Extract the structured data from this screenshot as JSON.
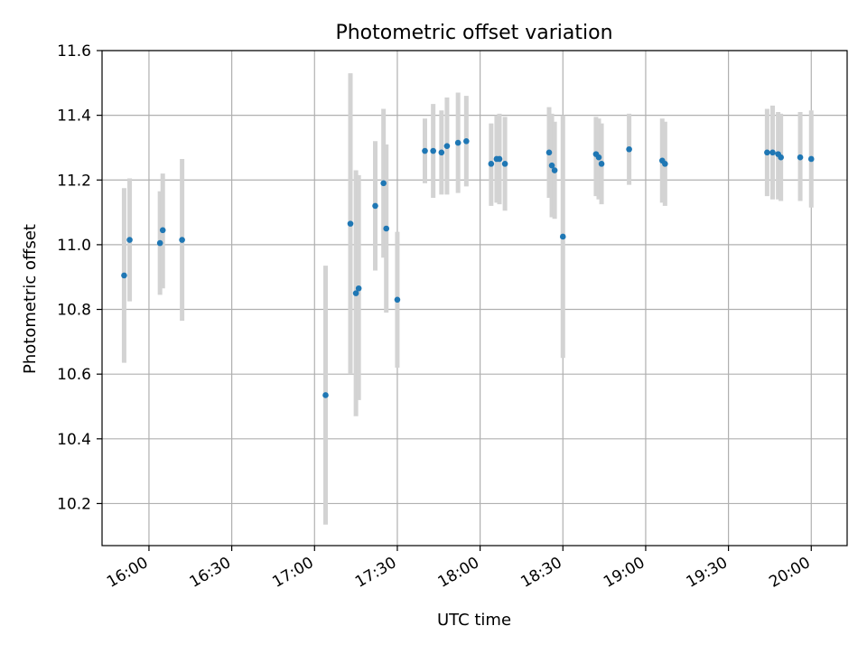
{
  "chart_data": {
    "type": "scatter",
    "title": "Photometric offset variation",
    "xlabel": "UTC time",
    "ylabel": "Photometric offset",
    "x_ticks": [
      "16:00",
      "16:30",
      "17:00",
      "17:30",
      "18:00",
      "18:30",
      "19:00",
      "19:30",
      "20:00"
    ],
    "y_ticks": [
      "10.2",
      "10.4",
      "10.6",
      "10.8",
      "11.0",
      "11.2",
      "11.4",
      "11.6"
    ],
    "ylim": [
      10.07,
      11.6
    ],
    "xlim": [
      "15:43",
      "20:13"
    ],
    "grid": true,
    "error_bars": true,
    "colors": {
      "marker": "#1f77b4",
      "error_bar": "#d3d3d3",
      "grid": "#b0b0b0"
    },
    "points": [
      {
        "x": "15:51",
        "y": 10.905,
        "ylow": 10.635,
        "yhigh": 11.175
      },
      {
        "x": "15:53",
        "y": 11.015,
        "ylow": 10.825,
        "yhigh": 11.205
      },
      {
        "x": "16:04",
        "y": 11.005,
        "ylow": 10.845,
        "yhigh": 11.165
      },
      {
        "x": "16:05",
        "y": 11.045,
        "ylow": 10.865,
        "yhigh": 11.22
      },
      {
        "x": "16:12",
        "y": 11.015,
        "ylow": 10.765,
        "yhigh": 11.265
      },
      {
        "x": "17:04",
        "y": 10.535,
        "ylow": 10.135,
        "yhigh": 10.935
      },
      {
        "x": "17:13",
        "y": 11.065,
        "ylow": 10.6,
        "yhigh": 11.53
      },
      {
        "x": "17:15",
        "y": 10.85,
        "ylow": 10.47,
        "yhigh": 11.23
      },
      {
        "x": "17:16",
        "y": 10.865,
        "ylow": 10.52,
        "yhigh": 11.215
      },
      {
        "x": "17:22",
        "y": 11.12,
        "ylow": 10.92,
        "yhigh": 11.32
      },
      {
        "x": "17:25",
        "y": 11.19,
        "ylow": 10.96,
        "yhigh": 11.42
      },
      {
        "x": "17:26",
        "y": 11.05,
        "ylow": 10.79,
        "yhigh": 11.31
      },
      {
        "x": "17:30",
        "y": 10.83,
        "ylow": 10.62,
        "yhigh": 11.04
      },
      {
        "x": "17:40",
        "y": 11.29,
        "ylow": 11.19,
        "yhigh": 11.39
      },
      {
        "x": "17:43",
        "y": 11.29,
        "ylow": 11.145,
        "yhigh": 11.435
      },
      {
        "x": "17:46",
        "y": 11.285,
        "ylow": 11.155,
        "yhigh": 11.415
      },
      {
        "x": "17:48",
        "y": 11.305,
        "ylow": 11.155,
        "yhigh": 11.455
      },
      {
        "x": "17:52",
        "y": 11.315,
        "ylow": 11.16,
        "yhigh": 11.47
      },
      {
        "x": "17:55",
        "y": 11.32,
        "ylow": 11.18,
        "yhigh": 11.46
      },
      {
        "x": "18:04",
        "y": 11.25,
        "ylow": 11.12,
        "yhigh": 11.375
      },
      {
        "x": "18:06",
        "y": 11.265,
        "ylow": 11.13,
        "yhigh": 11.4
      },
      {
        "x": "18:07",
        "y": 11.265,
        "ylow": 11.125,
        "yhigh": 11.405
      },
      {
        "x": "18:09",
        "y": 11.25,
        "ylow": 11.105,
        "yhigh": 11.395
      },
      {
        "x": "18:25",
        "y": 11.285,
        "ylow": 11.145,
        "yhigh": 11.425
      },
      {
        "x": "18:26",
        "y": 11.245,
        "ylow": 11.085,
        "yhigh": 11.405
      },
      {
        "x": "18:27",
        "y": 11.23,
        "ylow": 11.08,
        "yhigh": 11.38
      },
      {
        "x": "18:30",
        "y": 11.025,
        "ylow": 10.65,
        "yhigh": 11.4
      },
      {
        "x": "18:42",
        "y": 11.28,
        "ylow": 11.15,
        "yhigh": 11.395
      },
      {
        "x": "18:43",
        "y": 11.27,
        "ylow": 11.14,
        "yhigh": 11.39
      },
      {
        "x": "18:44",
        "y": 11.25,
        "ylow": 11.125,
        "yhigh": 11.375
      },
      {
        "x": "18:54",
        "y": 11.295,
        "ylow": 11.185,
        "yhigh": 11.405
      },
      {
        "x": "19:06",
        "y": 11.26,
        "ylow": 11.13,
        "yhigh": 11.39
      },
      {
        "x": "19:07",
        "y": 11.25,
        "ylow": 11.12,
        "yhigh": 11.38
      },
      {
        "x": "19:44",
        "y": 11.285,
        "ylow": 11.15,
        "yhigh": 11.42
      },
      {
        "x": "19:46",
        "y": 11.285,
        "ylow": 11.14,
        "yhigh": 11.43
      },
      {
        "x": "19:48",
        "y": 11.28,
        "ylow": 11.14,
        "yhigh": 11.41
      },
      {
        "x": "19:49",
        "y": 11.27,
        "ylow": 11.135,
        "yhigh": 11.405
      },
      {
        "x": "19:56",
        "y": 11.27,
        "ylow": 11.135,
        "yhigh": 11.41
      },
      {
        "x": "20:00",
        "y": 11.265,
        "ylow": 11.115,
        "yhigh": 11.415
      }
    ]
  }
}
